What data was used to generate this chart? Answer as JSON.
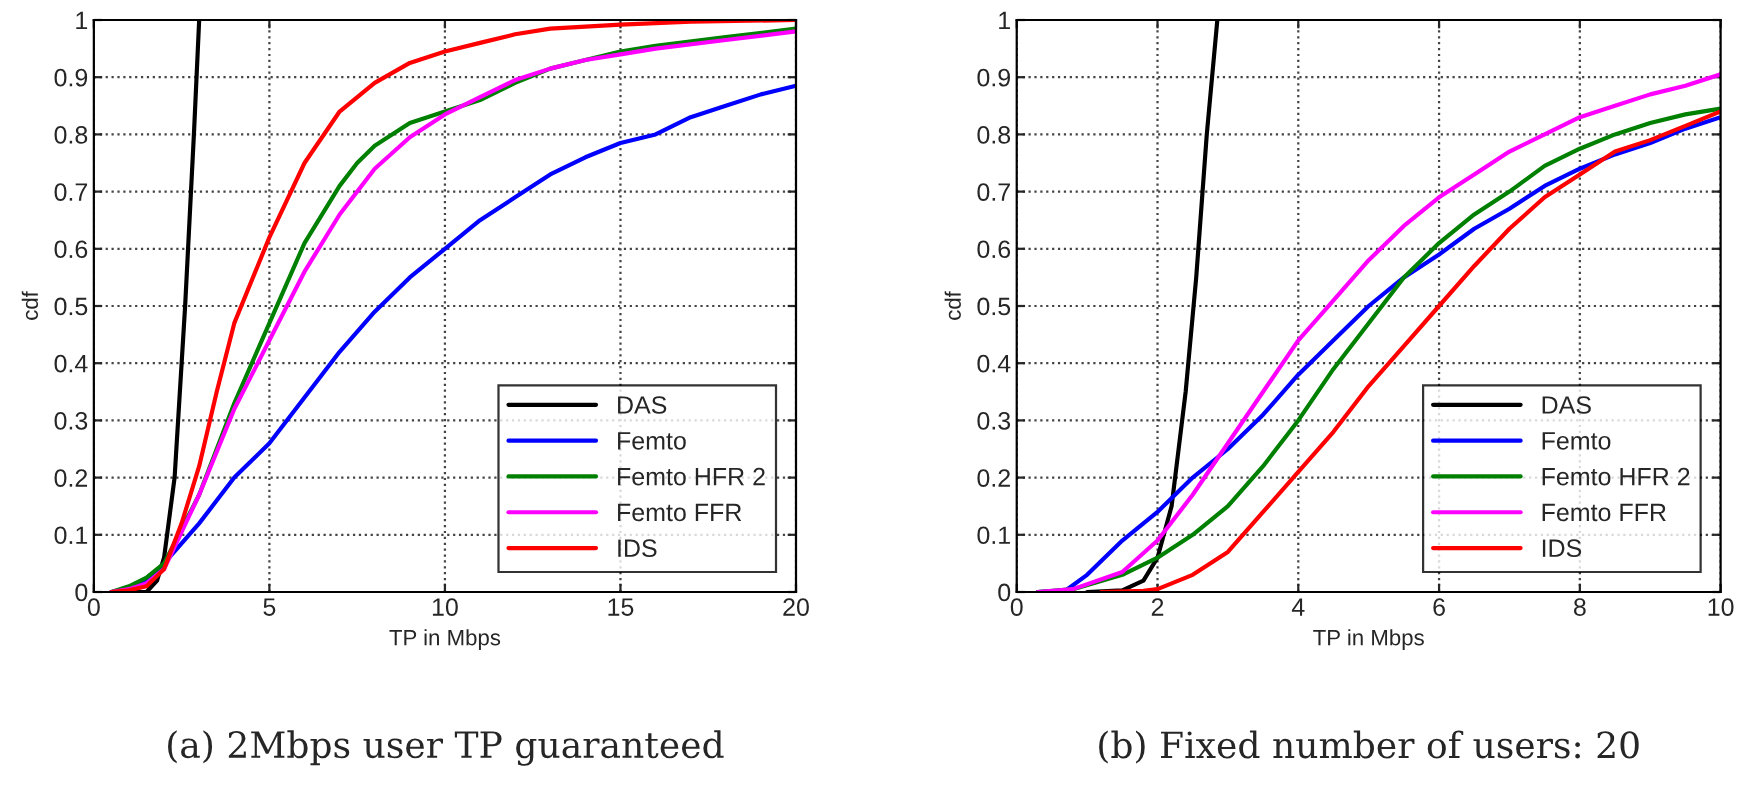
{
  "chart_data": [
    {
      "type": "line",
      "title": "(a) 2Mbps user TP guaranteed",
      "xlabel": "TP in Mbps",
      "ylabel": "cdf",
      "xlim": [
        0,
        20
      ],
      "ylim": [
        0,
        1
      ],
      "xticks": [
        0,
        5,
        10,
        15,
        20
      ],
      "yticks": [
        0,
        0.1,
        0.2,
        0.3,
        0.4,
        0.5,
        0.6,
        0.7,
        0.8,
        0.9,
        1
      ],
      "grid": true,
      "legend": "bottom right",
      "line_style": "solid",
      "series": [
        {
          "name": "DAS",
          "color": "#000000",
          "x": [
            0.5,
            1.5,
            1.8,
            2,
            2.3,
            2.6,
            2.85,
            3.0
          ],
          "values": [
            0,
            0,
            0.02,
            0.06,
            0.2,
            0.5,
            0.8,
            1.0
          ]
        },
        {
          "name": "Femto",
          "color": "#0000ff",
          "x": [
            0.5,
            1,
            1.5,
            2,
            3,
            4,
            5,
            6,
            7,
            8,
            9,
            10,
            11,
            12,
            13,
            14,
            15,
            16,
            17,
            18,
            19,
            20
          ],
          "values": [
            0,
            0.005,
            0.02,
            0.05,
            0.12,
            0.2,
            0.26,
            0.34,
            0.42,
            0.49,
            0.55,
            0.6,
            0.65,
            0.69,
            0.73,
            0.76,
            0.785,
            0.8,
            0.83,
            0.85,
            0.87,
            0.885
          ]
        },
        {
          "name": "Femto HFR 2",
          "color": "#008000",
          "x": [
            0.5,
            1,
            1.5,
            2,
            3,
            4,
            5,
            6,
            7,
            7.5,
            8,
            9,
            10,
            11,
            12,
            13,
            14,
            15,
            16,
            18,
            20
          ],
          "values": [
            0,
            0.01,
            0.025,
            0.05,
            0.17,
            0.33,
            0.47,
            0.61,
            0.71,
            0.75,
            0.78,
            0.82,
            0.84,
            0.86,
            0.89,
            0.915,
            0.93,
            0.945,
            0.955,
            0.97,
            0.985
          ]
        },
        {
          "name": "Femto FFR",
          "color": "#ff00ff",
          "x": [
            0.5,
            1,
            1.5,
            2,
            3,
            4,
            5,
            6,
            7,
            8,
            9,
            10,
            11,
            12,
            13,
            14,
            15,
            16,
            18,
            20
          ],
          "values": [
            0,
            0.005,
            0.015,
            0.04,
            0.17,
            0.32,
            0.44,
            0.56,
            0.66,
            0.74,
            0.795,
            0.835,
            0.865,
            0.895,
            0.915,
            0.93,
            0.94,
            0.95,
            0.965,
            0.98
          ]
        },
        {
          "name": "IDS",
          "color": "#ff0000",
          "x": [
            0.5,
            1,
            1.5,
            2,
            2.5,
            3,
            3.5,
            4,
            5,
            6,
            7,
            8,
            9,
            10,
            11,
            12,
            13,
            15,
            17,
            20
          ],
          "values": [
            0,
            0.003,
            0.01,
            0.04,
            0.12,
            0.22,
            0.35,
            0.47,
            0.62,
            0.75,
            0.84,
            0.89,
            0.925,
            0.945,
            0.96,
            0.975,
            0.985,
            0.992,
            0.997,
            1.0
          ]
        }
      ]
    },
    {
      "type": "line",
      "title": "(b) Fixed number of users: 20",
      "xlabel": "TP in Mbps",
      "ylabel": "cdf",
      "xlim": [
        0,
        10
      ],
      "ylim": [
        0,
        1
      ],
      "xticks": [
        0,
        2,
        4,
        6,
        8,
        10
      ],
      "yticks": [
        0,
        0.1,
        0.2,
        0.3,
        0.4,
        0.5,
        0.6,
        0.7,
        0.8,
        0.9,
        1
      ],
      "grid": true,
      "legend": "bottom right",
      "line_style": "solid",
      "series": [
        {
          "name": "DAS",
          "color": "#000000",
          "x": [
            1,
            1.5,
            1.8,
            2,
            2.2,
            2.4,
            2.55,
            2.7,
            2.85
          ],
          "values": [
            0,
            0.003,
            0.02,
            0.06,
            0.15,
            0.35,
            0.55,
            0.8,
            1.0
          ]
        },
        {
          "name": "Femto",
          "color": "#0000ff",
          "x": [
            0.3,
            0.7,
            1,
            1.5,
            2,
            2.5,
            3,
            3.5,
            4,
            4.5,
            5,
            5.5,
            6,
            6.5,
            7,
            7.5,
            8,
            8.5,
            9,
            9.5,
            10
          ],
          "values": [
            0,
            0.003,
            0.03,
            0.09,
            0.14,
            0.2,
            0.25,
            0.31,
            0.38,
            0.44,
            0.5,
            0.55,
            0.59,
            0.635,
            0.67,
            0.71,
            0.74,
            0.765,
            0.785,
            0.81,
            0.83
          ]
        },
        {
          "name": "Femto HFR 2",
          "color": "#008000",
          "x": [
            0.3,
            0.8,
            1.5,
            2,
            2.5,
            3,
            3.5,
            4,
            4.5,
            5,
            5.5,
            6,
            6.5,
            7,
            7.5,
            8,
            8.5,
            9,
            9.5,
            10
          ],
          "values": [
            0,
            0.005,
            0.03,
            0.06,
            0.1,
            0.15,
            0.22,
            0.3,
            0.39,
            0.47,
            0.55,
            0.61,
            0.66,
            0.7,
            0.745,
            0.775,
            0.8,
            0.82,
            0.835,
            0.845
          ]
        },
        {
          "name": "Femto FFR",
          "color": "#ff00ff",
          "x": [
            0.3,
            0.8,
            1.5,
            2,
            2.5,
            3,
            3.5,
            4,
            4.5,
            5,
            5.5,
            6,
            6.5,
            7,
            7.5,
            8,
            8.5,
            9,
            9.5,
            10
          ],
          "values": [
            0,
            0.005,
            0.035,
            0.09,
            0.17,
            0.26,
            0.35,
            0.44,
            0.51,
            0.58,
            0.64,
            0.69,
            0.73,
            0.77,
            0.8,
            0.83,
            0.85,
            0.87,
            0.885,
            0.905
          ]
        },
        {
          "name": "IDS",
          "color": "#ff0000",
          "x": [
            1.2,
            1.8,
            2,
            2.5,
            3,
            3.5,
            4,
            4.5,
            5,
            5.5,
            6,
            6.5,
            7,
            7.5,
            8,
            8.5,
            9,
            9.5,
            10
          ],
          "values": [
            0,
            0.002,
            0.005,
            0.03,
            0.07,
            0.14,
            0.21,
            0.28,
            0.36,
            0.43,
            0.5,
            0.57,
            0.635,
            0.69,
            0.73,
            0.77,
            0.79,
            0.815,
            0.84
          ]
        }
      ]
    }
  ]
}
